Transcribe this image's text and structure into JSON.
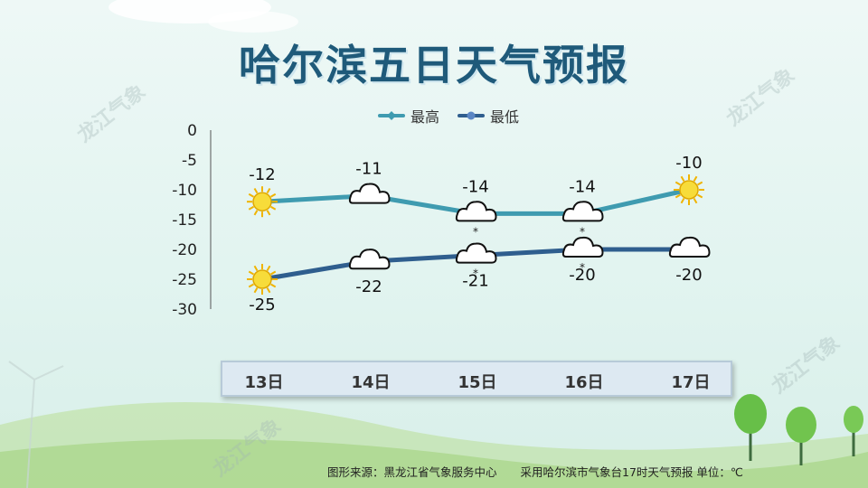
{
  "title": "哈尔滨五日天气预报",
  "legend": [
    {
      "name": "最高",
      "color": "#3f9bb0"
    },
    {
      "name": "最低",
      "color": "#2f5e8e"
    }
  ],
  "chart_data": {
    "type": "line",
    "categories": [
      "13日",
      "14日",
      "15日",
      "16日",
      "17日"
    ],
    "series": [
      {
        "name": "最高",
        "values": [
          -12,
          -11,
          -14,
          -14,
          -10
        ],
        "color": "#3f9bb0",
        "weather": [
          "sunny-icon",
          "cloudy-icon",
          "snow-icon",
          "snow-icon",
          "sunny-icon"
        ]
      },
      {
        "name": "最低",
        "values": [
          -25,
          -22,
          -21,
          -20,
          -20
        ],
        "color": "#2f5e8e",
        "weather": [
          "sunny-icon",
          "cloudy-icon",
          "snow-icon",
          "snow-icon",
          "cloudy-icon"
        ]
      }
    ],
    "y_ticks": [
      "0",
      "-5",
      "-10",
      "-15",
      "-20",
      "-25",
      "-30"
    ],
    "ylim": [
      -30,
      0
    ],
    "grid": false,
    "legend_position": "top-center"
  },
  "footer": {
    "source": "图形来源：黑龙江省气象服务中心",
    "note": "采用哈尔滨市气象台17时天气预报 单位：℃"
  },
  "watermark": "龙江气象"
}
